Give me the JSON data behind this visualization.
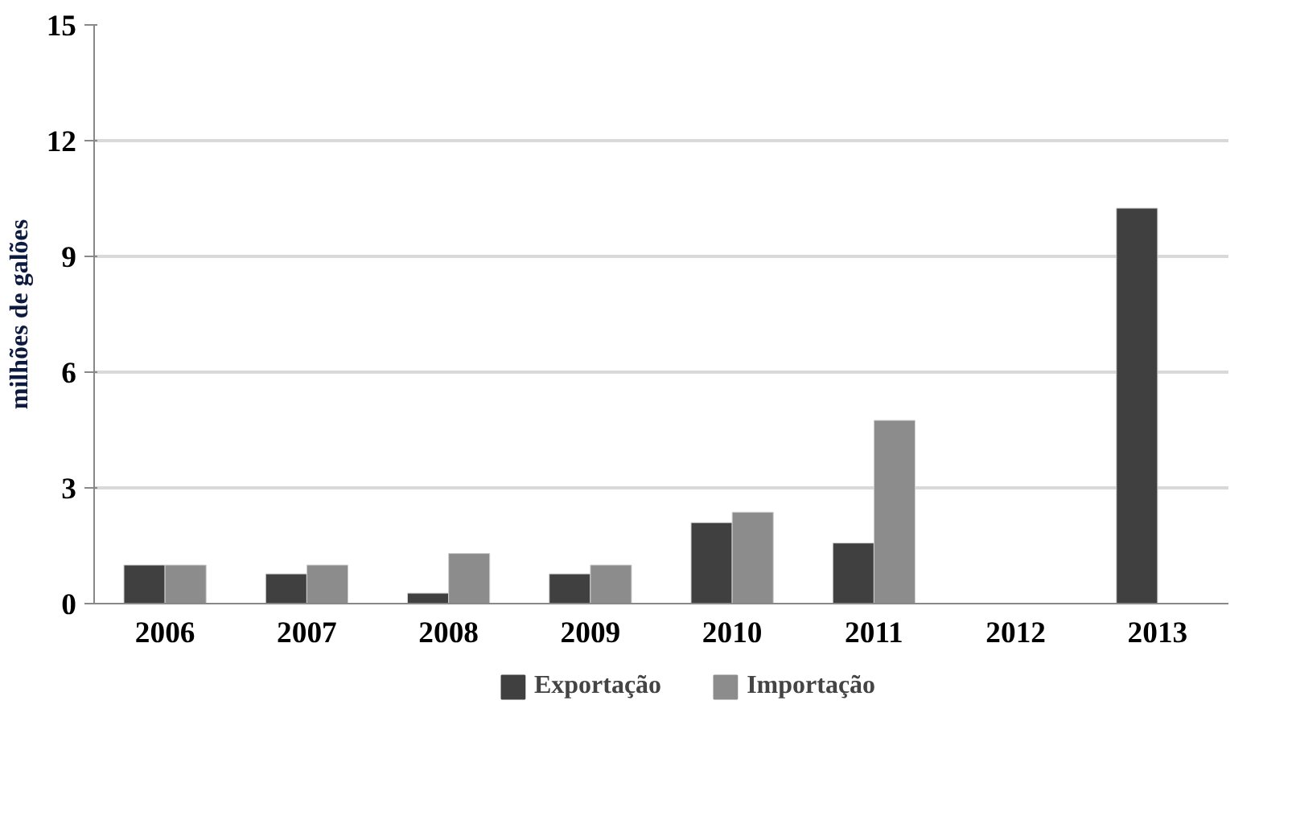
{
  "chart_data": {
    "type": "bar",
    "ylabel": "milhões de galões",
    "categories": [
      "2006",
      "2007",
      "2008",
      "2009",
      "2010",
      "2011",
      "2012",
      "2013"
    ],
    "series": [
      {
        "name": "Exportação",
        "color": "#404040",
        "values": [
          1.0,
          0.77,
          0.27,
          0.77,
          2.1,
          1.57,
          null,
          10.25
        ]
      },
      {
        "name": "Importação",
        "color": "#8c8c8c",
        "values": [
          1.0,
          1.0,
          1.3,
          1.0,
          2.37,
          4.75,
          null,
          null
        ]
      }
    ],
    "ylim": [
      0,
      15
    ],
    "yticks": [
      0,
      3,
      6,
      9,
      12,
      15
    ],
    "grid": "y",
    "legend": "bottom"
  }
}
